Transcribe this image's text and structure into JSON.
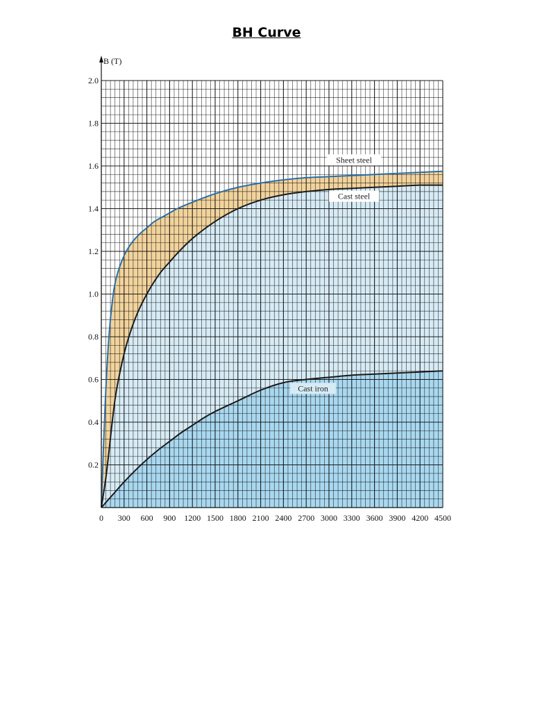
{
  "page": {
    "title": "BH Curve"
  },
  "chart_data": {
    "type": "line",
    "title": "",
    "xlabel": "",
    "ylabel": "B (T)",
    "xlim": [
      0,
      4500
    ],
    "ylim": [
      0,
      2.0
    ],
    "x_ticks": [
      "0",
      "300",
      "600",
      "900",
      "1200",
      "1500",
      "1800",
      "2100",
      "2400",
      "2700",
      "3000",
      "3300",
      "3600",
      "3900",
      "4200",
      "4500"
    ],
    "y_ticks": [
      "0.2",
      "0.4",
      "0.6",
      "0.8",
      "1.0",
      "1.2",
      "1.4",
      "1.6",
      "1.8",
      "2.0"
    ],
    "grid": true,
    "series": [
      {
        "name": "Sheet steel",
        "color": "#2a6fa8",
        "fill": "#f2d39c",
        "x": [
          0,
          50,
          100,
          150,
          200,
          300,
          400,
          500,
          600,
          700,
          800,
          900,
          1000,
          1200,
          1500,
          1800,
          2100,
          2400,
          2700,
          3000,
          3300,
          3600,
          3900,
          4200,
          4500
        ],
        "y": [
          0,
          0.48,
          0.8,
          0.98,
          1.08,
          1.18,
          1.24,
          1.28,
          1.31,
          1.34,
          1.36,
          1.38,
          1.4,
          1.43,
          1.47,
          1.5,
          1.52,
          1.535,
          1.545,
          1.55,
          1.555,
          1.56,
          1.565,
          1.57,
          1.575
        ]
      },
      {
        "name": "Cast steel",
        "color": "#1a1a1a",
        "fill": "#d7ebf5",
        "x": [
          0,
          60,
          100,
          150,
          200,
          300,
          400,
          500,
          600,
          700,
          800,
          900,
          1000,
          1200,
          1500,
          1800,
          2100,
          2400,
          2700,
          3000,
          3300,
          3600,
          3900,
          4200,
          4500
        ],
        "y": [
          0,
          0.14,
          0.26,
          0.42,
          0.55,
          0.72,
          0.84,
          0.93,
          1.0,
          1.06,
          1.11,
          1.15,
          1.19,
          1.26,
          1.34,
          1.4,
          1.44,
          1.465,
          1.48,
          1.49,
          1.495,
          1.5,
          1.505,
          1.51,
          1.51
        ]
      },
      {
        "name": "Cast iron",
        "color": "#1a1a1a",
        "fill": "#a9d8f0",
        "x": [
          0,
          150,
          300,
          450,
          600,
          750,
          900,
          1050,
          1200,
          1350,
          1500,
          1800,
          2100,
          2400,
          2700,
          3000,
          3300,
          3600,
          3900,
          4200,
          4500
        ],
        "y": [
          0,
          0.06,
          0.12,
          0.175,
          0.225,
          0.27,
          0.31,
          0.35,
          0.385,
          0.42,
          0.45,
          0.5,
          0.55,
          0.585,
          0.6,
          0.61,
          0.62,
          0.625,
          0.63,
          0.635,
          0.64
        ]
      }
    ]
  }
}
